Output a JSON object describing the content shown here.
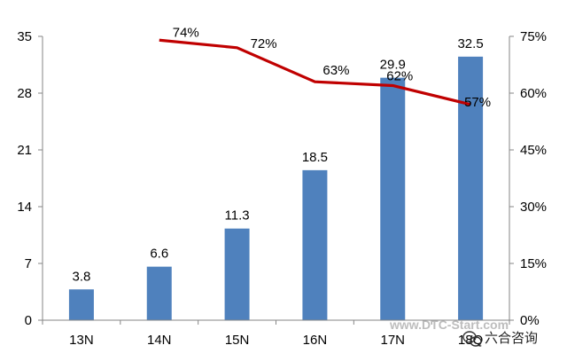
{
  "chart_data": {
    "type": "bar",
    "categories": [
      "13N",
      "14N",
      "15N",
      "16N",
      "17N",
      "18Q"
    ],
    "series": [
      {
        "type": "bar",
        "axis": "left",
        "color": "#4f81bd",
        "values": [
          3.8,
          6.6,
          11.3,
          18.5,
          29.9,
          32.5
        ],
        "labels": [
          "3.8",
          "6.6",
          "11.3",
          "18.5",
          "29.9",
          "32.5"
        ]
      },
      {
        "type": "line",
        "axis": "right",
        "color": "#c00000",
        "x": [
          "14N",
          "15N",
          "16N",
          "17N",
          "18Q"
        ],
        "values": [
          74,
          72,
          63,
          62,
          57
        ],
        "labels": [
          "74%",
          "72%",
          "63%",
          "62%",
          "57%"
        ]
      }
    ],
    "y_left": {
      "ylim": [
        0,
        35
      ],
      "ticks": [
        "0",
        "7",
        "14",
        "21",
        "28",
        "35"
      ]
    },
    "y_right": {
      "ylim": [
        0,
        75
      ],
      "ticks": [
        "0%",
        "15%",
        "30%",
        "45%",
        "60%",
        "75%"
      ]
    },
    "grid": false,
    "legend": false,
    "title": "",
    "xlabel": "",
    "ylabel": ""
  },
  "watermark": {
    "url": "www.DTC-Start.com",
    "brand": "六合咨询",
    "icon": "wechat-icon"
  }
}
